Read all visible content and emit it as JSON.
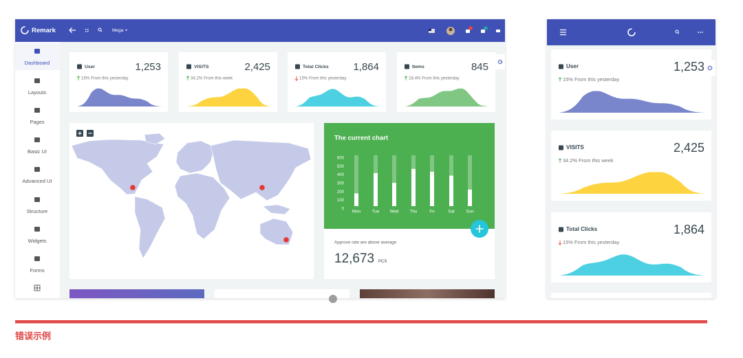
{
  "header": {
    "brand": "Remark",
    "menu": "Mega"
  },
  "sidebar": {
    "items": [
      "Dashboard",
      "Layouts",
      "Pages",
      "Basic UI",
      "Advanced UI",
      "Structure",
      "Widgets",
      "Forms"
    ]
  },
  "stats": [
    {
      "label": "User",
      "value": "1,253",
      "change": "15% From this yesterday"
    },
    {
      "label": "VISITS",
      "value": "2,425",
      "change": "34.2% From this week"
    },
    {
      "label": "Total Clicks",
      "value": "1,864",
      "change": "15% From this yesterday"
    },
    {
      "label": "Items",
      "value": "845",
      "change": "18.4% From this yesterday"
    }
  ],
  "chart_data": {
    "type": "bar",
    "title": "The current chart",
    "categories": [
      "Mon",
      "Tue",
      "Wed",
      "Thu",
      "Fri",
      "Sat",
      "Sun"
    ],
    "values": [
      150,
      390,
      275,
      440,
      405,
      360,
      195
    ],
    "ylim": [
      0,
      600
    ],
    "yticks": [
      0,
      100,
      200,
      300,
      400,
      500,
      600
    ],
    "color": "#ffffff"
  },
  "summary": {
    "note": "Approve rate are above average",
    "value": "12,673",
    "unit": "PCS"
  },
  "caption": "错误示例"
}
